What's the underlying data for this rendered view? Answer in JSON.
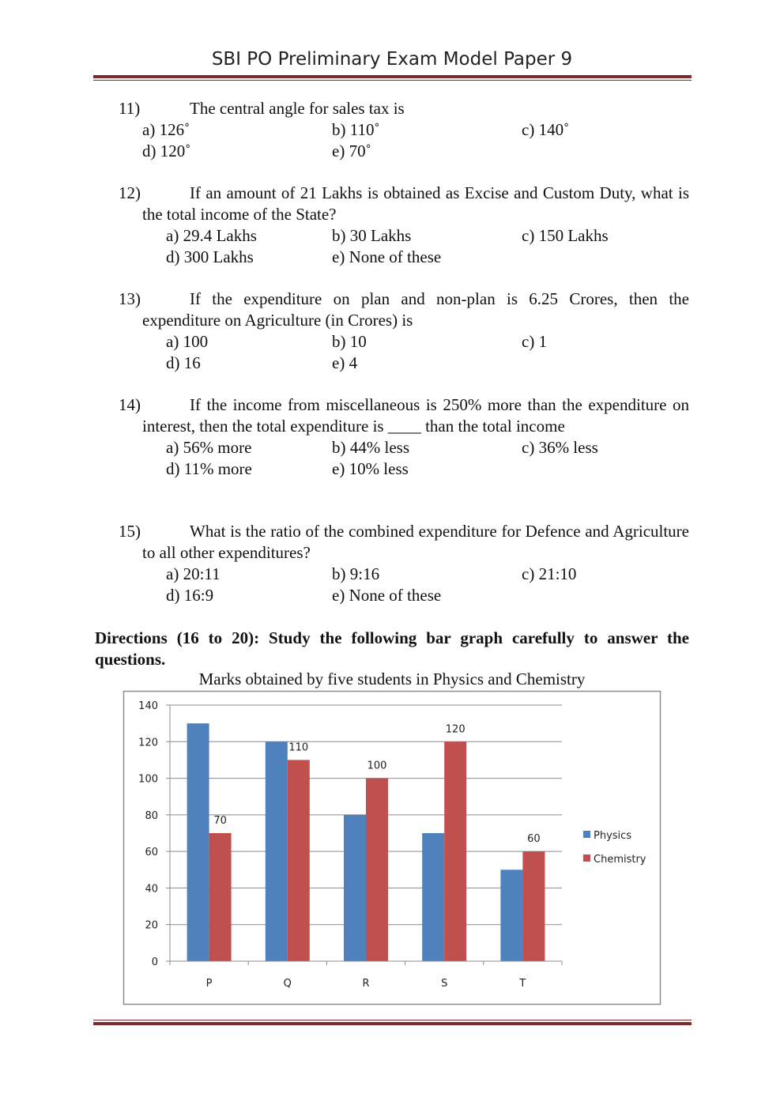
{
  "header": {
    "title": "SBI PO Preliminary Exam Model Paper 9"
  },
  "questions": [
    {
      "number": "11)",
      "text": "The central angle for sales tax is",
      "options": [
        "a) 126˚",
        "b) 110˚",
        "c) 140˚",
        "d) 120˚",
        "e) 70˚"
      ]
    },
    {
      "number": "12)",
      "text": "If an amount of 21 Lakhs is obtained as Excise and Custom Duty, what is the total income of the State?",
      "options": [
        "a) 29.4 Lakhs",
        "b) 30 Lakhs",
        "c) 150 Lakhs",
        "d) 300 Lakhs",
        "e) None of these"
      ]
    },
    {
      "number": "13)",
      "text": "If the expenditure on plan and non-plan is 6.25 Crores, then the expenditure on Agriculture (in Crores) is",
      "options": [
        "a) 100",
        "b) 10",
        "c) 1",
        "d) 16",
        "e) 4"
      ]
    },
    {
      "number": "14)",
      "text": "If the income from miscellaneous is 250% more than the expenditure on interest, then the total expenditure is ____ than the total income",
      "options": [
        "a) 56% more",
        "b) 44% less",
        "c) 36% less",
        "d) 11% more",
        "e) 10% less"
      ]
    },
    {
      "number": "15)",
      "text": "What is the ratio of the combined expenditure for Defence and Agriculture to all other expenditures?",
      "options": [
        "a) 20:11",
        "b) 9:16",
        "c) 21:10",
        "d) 16:9",
        "e) None of these"
      ]
    }
  ],
  "directions": "Directions (16 to 20): Study the following bar graph carefully to answer the questions.",
  "chart_data": {
    "type": "bar",
    "title": "Marks obtained by five students in Physics and Chemistry",
    "categories": [
      "P",
      "Q",
      "R",
      "S",
      "T"
    ],
    "series": [
      {
        "name": "Physics",
        "values": [
          130,
          120,
          80,
          70,
          50
        ],
        "color": "#4f81bd"
      },
      {
        "name": "Chemistry",
        "values": [
          70,
          110,
          100,
          120,
          60
        ],
        "color": "#c0504d"
      }
    ],
    "data_labels": [
      {
        "category": "P",
        "series": "Chemistry",
        "text": "70"
      },
      {
        "category": "Q",
        "series": "Chemistry",
        "text": "110"
      },
      {
        "category": "R",
        "series": "Chemistry",
        "text": "100"
      },
      {
        "category": "S",
        "series": "Chemistry",
        "text": "120"
      },
      {
        "category": "T",
        "series": "Chemistry",
        "text": "60"
      }
    ],
    "ylim": [
      0,
      140
    ],
    "yticks": [
      "0",
      "20",
      "40",
      "60",
      "80",
      "100",
      "120",
      "140"
    ],
    "grid": true,
    "legend": "right"
  }
}
